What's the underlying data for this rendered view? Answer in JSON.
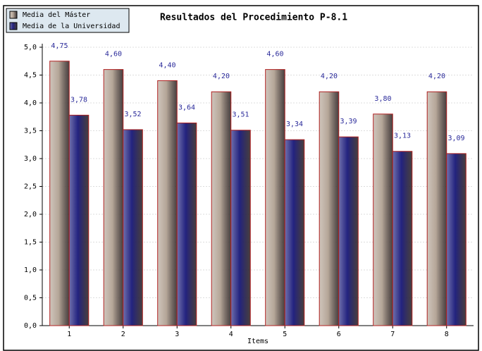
{
  "chart_data": {
    "type": "bar",
    "title": "Resultados del Procedimiento P-8.1",
    "x_label": "Items",
    "categories": [
      "1",
      "2",
      "3",
      "4",
      "5",
      "6",
      "7",
      "8"
    ],
    "series": [
      {
        "name": "Media del Máster",
        "color": "#b5a698",
        "values": [
          4.75,
          4.6,
          4.4,
          4.2,
          4.6,
          4.2,
          3.8,
          4.2
        ],
        "value_labels": [
          "4,75",
          "4,60",
          "4,40",
          "4,20",
          "4,60",
          "4,20",
          "3,80",
          "4,20"
        ]
      },
      {
        "name": "Media de la Universidad",
        "color": "#23237f",
        "values": [
          3.78,
          3.52,
          3.64,
          3.51,
          3.34,
          3.39,
          3.13,
          3.09
        ],
        "value_labels": [
          "3,78",
          "3,52",
          "3,64",
          "3,51",
          "3,34",
          "3,39",
          "3,13",
          "3,09"
        ]
      }
    ],
    "ylim": [
      0,
      5
    ],
    "yticks": [
      {
        "value": 0,
        "label": "0,0"
      },
      {
        "value": 0.5,
        "label": "0,5"
      },
      {
        "value": 1,
        "label": "1,0"
      },
      {
        "value": 1.5,
        "label": "1,5"
      },
      {
        "value": 2,
        "label": "2,0"
      },
      {
        "value": 2.5,
        "label": "2,5"
      },
      {
        "value": 3,
        "label": "3,0"
      },
      {
        "value": 3.5,
        "label": "3,5"
      },
      {
        "value": 4,
        "label": "4,0"
      },
      {
        "value": 4.5,
        "label": "4,5"
      },
      {
        "value": 5,
        "label": "5,0"
      }
    ],
    "grid": true,
    "legend": "top-left"
  }
}
